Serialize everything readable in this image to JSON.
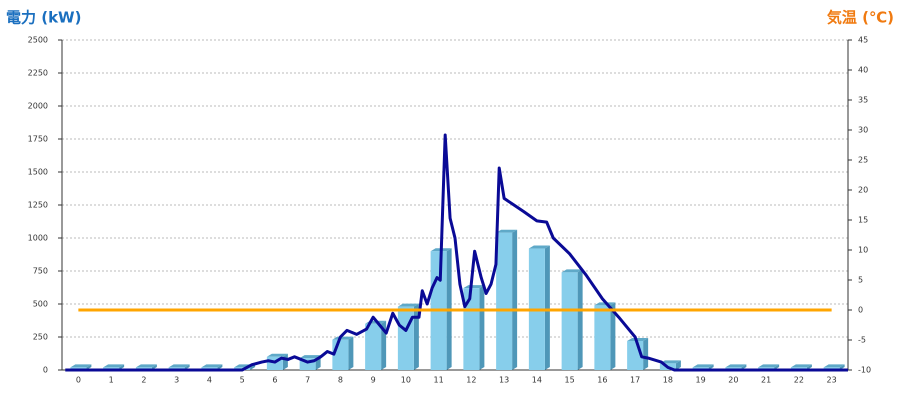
{
  "chart_data": {
    "type": "bar",
    "title_left": "電力 (kW)",
    "title_right": "気温 (℃)",
    "categories": [
      "0",
      "1",
      "2",
      "3",
      "4",
      "5",
      "6",
      "7",
      "8",
      "9",
      "10",
      "11",
      "12",
      "13",
      "14",
      "15",
      "16",
      "17",
      "18",
      "19",
      "20",
      "21",
      "22",
      "23"
    ],
    "ylim": [
      0,
      2500
    ],
    "yticks": [
      0,
      250,
      500,
      750,
      1000,
      1250,
      1500,
      1750,
      2000,
      2250,
      2500
    ],
    "y2lim": [
      -10,
      45
    ],
    "y2ticks": [
      -10,
      -5,
      0,
      5,
      10,
      15,
      20,
      25,
      30,
      35,
      40,
      45
    ],
    "xlim": [
      -0.5,
      23.5
    ],
    "grid": true,
    "series": [
      {
        "type": "bar",
        "color": "#87ceeb",
        "values": [
          20,
          20,
          20,
          20,
          20,
          20,
          100,
          90,
          230,
          350,
          480,
          900,
          620,
          1040,
          920,
          740,
          490,
          220,
          50,
          20,
          20,
          20,
          20,
          20
        ]
      },
      {
        "type": "line",
        "color": "#0a0a96",
        "x": [
          -0.4,
          5,
          5.3,
          5.6,
          5.8,
          6,
          6.2,
          6.4,
          6.6,
          6.8,
          7,
          7.2,
          7.4,
          7.6,
          7.8,
          8,
          8.2,
          8.5,
          8.8,
          9,
          9.2,
          9.4,
          9.6,
          9.8,
          10,
          10.2,
          10.4,
          10.5,
          10.65,
          10.8,
          10.95,
          11.05,
          11.2,
          11.35,
          11.5,
          11.65,
          11.8,
          11.95,
          12.1,
          12.3,
          12.45,
          12.6,
          12.75,
          12.85,
          13,
          13.3,
          13.6,
          14,
          14.3,
          14.5,
          15,
          15.5,
          16,
          16.5,
          17,
          17.2,
          17.4,
          17.8,
          18,
          18.2,
          23.5
        ],
        "values": [
          0,
          0,
          40,
          60,
          70,
          60,
          90,
          80,
          100,
          80,
          60,
          70,
          100,
          140,
          120,
          250,
          300,
          270,
          310,
          400,
          340,
          280,
          430,
          340,
          300,
          400,
          400,
          600,
          500,
          620,
          700,
          680,
          1780,
          1150,
          1000,
          650,
          480,
          540,
          900,
          700,
          580,
          650,
          800,
          1530,
          1300,
          1250,
          1200,
          1130,
          1120,
          1000,
          880,
          720,
          540,
          400,
          250,
          100,
          90,
          60,
          20,
          0,
          0
        ]
      },
      {
        "type": "line",
        "axis": "y2",
        "color": "#ffa500",
        "values": [
          0,
          0,
          0,
          0,
          0,
          0,
          0,
          0,
          0,
          0,
          0,
          0,
          0,
          0,
          0,
          0,
          0,
          0,
          0,
          0,
          0,
          0,
          0,
          0
        ]
      }
    ]
  }
}
